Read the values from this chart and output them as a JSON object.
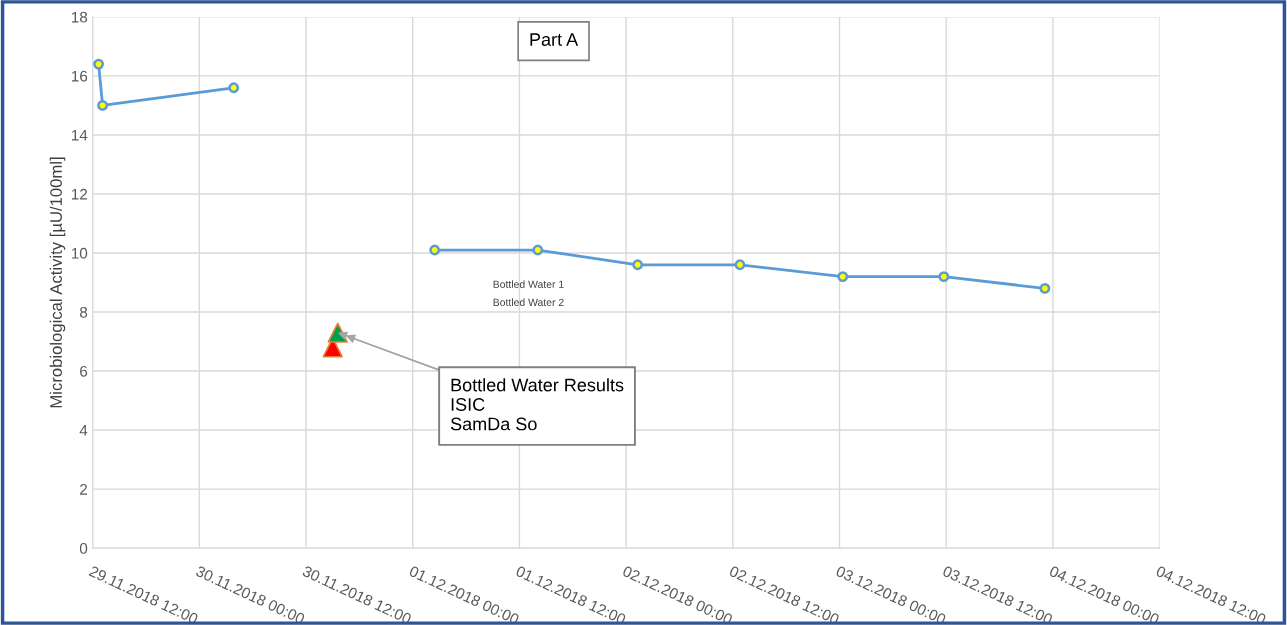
{
  "chart_data": {
    "type": "line",
    "title": "Part A",
    "ylabel": "Microbiological Activity [µU/100ml]",
    "series": [
      {
        "color": "#5b9bd5",
        "marker": "circle",
        "x": [
          "2018-11-29T12:40",
          "2018-11-29T13:07",
          "2018-11-30T03:52"
        ],
        "values": [
          16.4,
          15.0,
          15.6
        ]
      },
      {
        "color": "#5b9bd5",
        "marker": "circle",
        "x": [
          "2018-12-01T02:28",
          "2018-12-01T14:04",
          "2018-12-02T01:18",
          "2018-12-02T12:48",
          "2018-12-03T00:22",
          "2018-12-03T11:44",
          "2018-12-03T23:06"
        ],
        "values": [
          10.1,
          10.1,
          9.6,
          9.6,
          9.2,
          9.2,
          8.8
        ]
      },
      {
        "type": "scatter",
        "color": "#ff0000",
        "marker": "triangle",
        "x": [
          "2018-11-30T15:00"
        ],
        "values": [
          6.8
        ]
      },
      {
        "type": "scatter",
        "color": "#00a04a",
        "marker": "triangle",
        "x": [
          "2018-11-30T15:34"
        ],
        "values": [
          7.3
        ]
      }
    ],
    "annotations": [
      "Bottled Water 1",
      "Bottled Water 2",
      {
        "text": "Bottled Water Results\nISIC\nSamDa So",
        "x": "2018-11-30T15:34",
        "y": 7.3
      }
    ],
    "xlim": [
      "2018-11-29T12:00",
      "2018-12-04T12:00"
    ],
    "xticks": [
      {
        "value": "2018-11-29T12:00",
        "label": "29.11.2018 12:00"
      },
      {
        "value": "2018-11-30T00:00",
        "label": "30.11.2018 00:00"
      },
      {
        "value": "2018-11-30T12:00",
        "label": "30.11.2018 12:00"
      },
      {
        "value": "2018-12-01T00:00",
        "label": "01.12.2018 00:00"
      },
      {
        "value": "2018-12-01T12:00",
        "label": "01.12.2018 12:00"
      },
      {
        "value": "2018-12-02T00:00",
        "label": "02.12.2018 00:00"
      },
      {
        "value": "2018-12-02T12:00",
        "label": "02.12.2018 12:00"
      },
      {
        "value": "2018-12-03T00:00",
        "label": "03.12.2018 00:00"
      },
      {
        "value": "2018-12-03T12:00",
        "label": "03.12.2018 12:00"
      },
      {
        "value": "2018-12-04T00:00",
        "label": "04.12.2018 00:00"
      },
      {
        "value": "2018-12-04T12:00",
        "label": "04.12.2018 12:00"
      }
    ],
    "ylim": [
      0,
      18
    ],
    "yticks": [
      0,
      2,
      4,
      6,
      8,
      10,
      12,
      14,
      16,
      18
    ],
    "grid": true,
    "legend": false
  }
}
